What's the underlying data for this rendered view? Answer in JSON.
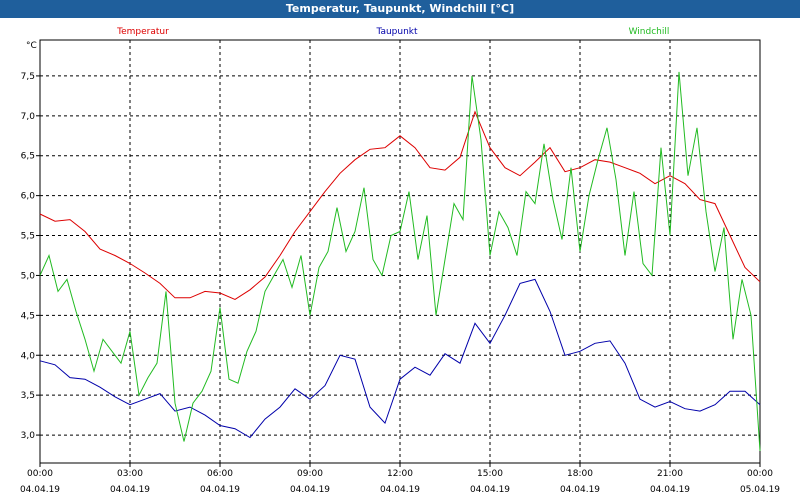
{
  "window": {
    "title": "Temperatur, Taupunkt, Windchill [°C]"
  },
  "chart_data": {
    "type": "line",
    "title": "Temperatur, Taupunkt, Windchill [°C]",
    "ylabel": "°C",
    "ylim": [
      2.65,
      7.95
    ],
    "xlim": [
      0,
      24
    ],
    "grid": true,
    "legend": "top",
    "yticks": [
      {
        "v": 3.0,
        "label": "3,0"
      },
      {
        "v": 3.5,
        "label": "3,5"
      },
      {
        "v": 4.0,
        "label": "4,0"
      },
      {
        "v": 4.5,
        "label": "4,5"
      },
      {
        "v": 5.0,
        "label": "5,0"
      },
      {
        "v": 5.5,
        "label": "5,5"
      },
      {
        "v": 6.0,
        "label": "6,0"
      },
      {
        "v": 6.5,
        "label": "6,5"
      },
      {
        "v": 7.0,
        "label": "7,0"
      },
      {
        "v": 7.5,
        "label": "7,5"
      }
    ],
    "xticks": [
      {
        "h": 0,
        "time": "00:00",
        "date": "04.04.19"
      },
      {
        "h": 3,
        "time": "03:00",
        "date": "04.04.19"
      },
      {
        "h": 6,
        "time": "06:00",
        "date": "04.04.19"
      },
      {
        "h": 9,
        "time": "09:00",
        "date": "04.04.19"
      },
      {
        "h": 12,
        "time": "12:00",
        "date": "04.04.19"
      },
      {
        "h": 15,
        "time": "15:00",
        "date": "04.04.19"
      },
      {
        "h": 18,
        "time": "18:00",
        "date": "04.04.19"
      },
      {
        "h": 21,
        "time": "21:00",
        "date": "04.04.19"
      },
      {
        "h": 24,
        "time": "00:00",
        "date": "05.04.19"
      }
    ],
    "series": [
      {
        "name": "Temperatur",
        "color": "#dd0000",
        "points": [
          [
            0,
            5.77
          ],
          [
            0.5,
            5.68
          ],
          [
            1,
            5.7
          ],
          [
            1.5,
            5.55
          ],
          [
            2,
            5.33
          ],
          [
            2.5,
            5.25
          ],
          [
            3,
            5.15
          ],
          [
            3.5,
            5.03
          ],
          [
            4,
            4.9
          ],
          [
            4.5,
            4.72
          ],
          [
            5,
            4.72
          ],
          [
            5.5,
            4.8
          ],
          [
            6,
            4.78
          ],
          [
            6.5,
            4.7
          ],
          [
            7,
            4.82
          ],
          [
            7.5,
            4.98
          ],
          [
            8,
            5.25
          ],
          [
            8.5,
            5.55
          ],
          [
            9,
            5.8
          ],
          [
            9.5,
            6.05
          ],
          [
            10,
            6.28
          ],
          [
            10.5,
            6.45
          ],
          [
            11,
            6.58
          ],
          [
            11.5,
            6.6
          ],
          [
            12,
            6.75
          ],
          [
            12.5,
            6.6
          ],
          [
            13,
            6.35
          ],
          [
            13.5,
            6.32
          ],
          [
            14,
            6.48
          ],
          [
            14.5,
            7.05
          ],
          [
            15,
            6.6
          ],
          [
            15.5,
            6.35
          ],
          [
            16,
            6.25
          ],
          [
            16.5,
            6.42
          ],
          [
            17,
            6.6
          ],
          [
            17.5,
            6.3
          ],
          [
            18,
            6.35
          ],
          [
            18.5,
            6.45
          ],
          [
            19,
            6.42
          ],
          [
            19.5,
            6.35
          ],
          [
            20,
            6.28
          ],
          [
            20.5,
            6.15
          ],
          [
            21,
            6.25
          ],
          [
            21.5,
            6.15
          ],
          [
            22,
            5.95
          ],
          [
            22.5,
            5.9
          ],
          [
            23,
            5.5
          ],
          [
            23.5,
            5.1
          ],
          [
            24,
            4.92
          ]
        ]
      },
      {
        "name": "Taupunkt",
        "color": "#0000aa",
        "points": [
          [
            0,
            3.93
          ],
          [
            0.5,
            3.88
          ],
          [
            1,
            3.72
          ],
          [
            1.5,
            3.7
          ],
          [
            2,
            3.6
          ],
          [
            2.5,
            3.48
          ],
          [
            3,
            3.38
          ],
          [
            3.5,
            3.45
          ],
          [
            4,
            3.52
          ],
          [
            4.5,
            3.3
          ],
          [
            5,
            3.35
          ],
          [
            5.5,
            3.25
          ],
          [
            6,
            3.12
          ],
          [
            6.5,
            3.08
          ],
          [
            7,
            2.97
          ],
          [
            7.5,
            3.2
          ],
          [
            8,
            3.35
          ],
          [
            8.5,
            3.58
          ],
          [
            9,
            3.45
          ],
          [
            9.5,
            3.62
          ],
          [
            10,
            4.0
          ],
          [
            10.5,
            3.95
          ],
          [
            11,
            3.35
          ],
          [
            11.5,
            3.15
          ],
          [
            12,
            3.7
          ],
          [
            12.5,
            3.85
          ],
          [
            13,
            3.75
          ],
          [
            13.5,
            4.02
          ],
          [
            14,
            3.9
          ],
          [
            14.5,
            4.4
          ],
          [
            15,
            4.15
          ],
          [
            15.5,
            4.5
          ],
          [
            16,
            4.9
          ],
          [
            16.5,
            4.95
          ],
          [
            17,
            4.55
          ],
          [
            17.5,
            4.0
          ],
          [
            18,
            4.05
          ],
          [
            18.5,
            4.15
          ],
          [
            19,
            4.18
          ],
          [
            19.5,
            3.9
          ],
          [
            20,
            3.45
          ],
          [
            20.5,
            3.35
          ],
          [
            21,
            3.42
          ],
          [
            21.5,
            3.33
          ],
          [
            22,
            3.3
          ],
          [
            22.5,
            3.38
          ],
          [
            23,
            3.55
          ],
          [
            23.5,
            3.55
          ],
          [
            24,
            3.38
          ]
        ]
      },
      {
        "name": "Windchill",
        "color": "#22bb22",
        "points": [
          [
            0,
            5.0
          ],
          [
            0.3,
            5.25
          ],
          [
            0.6,
            4.8
          ],
          [
            0.9,
            4.95
          ],
          [
            1.2,
            4.55
          ],
          [
            1.5,
            4.2
          ],
          [
            1.8,
            3.8
          ],
          [
            2.1,
            4.2
          ],
          [
            2.4,
            4.05
          ],
          [
            2.7,
            3.9
          ],
          [
            3,
            4.3
          ],
          [
            3.3,
            3.5
          ],
          [
            3.6,
            3.72
          ],
          [
            3.9,
            3.9
          ],
          [
            4.2,
            4.8
          ],
          [
            4.5,
            3.4
          ],
          [
            4.8,
            2.92
          ],
          [
            5.1,
            3.4
          ],
          [
            5.4,
            3.55
          ],
          [
            5.7,
            3.8
          ],
          [
            6,
            4.6
          ],
          [
            6.3,
            3.7
          ],
          [
            6.6,
            3.65
          ],
          [
            6.9,
            4.05
          ],
          [
            7.2,
            4.3
          ],
          [
            7.5,
            4.8
          ],
          [
            7.8,
            5.0
          ],
          [
            8.1,
            5.2
          ],
          [
            8.4,
            4.85
          ],
          [
            8.7,
            5.25
          ],
          [
            9,
            4.5
          ],
          [
            9.3,
            5.1
          ],
          [
            9.6,
            5.3
          ],
          [
            9.9,
            5.85
          ],
          [
            10.2,
            5.3
          ],
          [
            10.5,
            5.55
          ],
          [
            10.8,
            6.1
          ],
          [
            11.1,
            5.2
          ],
          [
            11.4,
            5.0
          ],
          [
            11.7,
            5.5
          ],
          [
            12,
            5.55
          ],
          [
            12.3,
            6.05
          ],
          [
            12.6,
            5.2
          ],
          [
            12.9,
            5.75
          ],
          [
            13.2,
            4.5
          ],
          [
            13.5,
            5.2
          ],
          [
            13.8,
            5.9
          ],
          [
            14.1,
            5.7
          ],
          [
            14.4,
            7.5
          ],
          [
            14.7,
            6.7
          ],
          [
            15,
            5.25
          ],
          [
            15.3,
            5.8
          ],
          [
            15.6,
            5.6
          ],
          [
            15.9,
            5.25
          ],
          [
            16.2,
            6.05
          ],
          [
            16.5,
            5.9
          ],
          [
            16.8,
            6.65
          ],
          [
            17.1,
            5.95
          ],
          [
            17.4,
            5.45
          ],
          [
            17.7,
            6.35
          ],
          [
            18,
            5.3
          ],
          [
            18.3,
            6.0
          ],
          [
            18.6,
            6.45
          ],
          [
            18.9,
            6.85
          ],
          [
            19.2,
            6.2
          ],
          [
            19.5,
            5.25
          ],
          [
            19.8,
            6.05
          ],
          [
            20.1,
            5.15
          ],
          [
            20.4,
            5.0
          ],
          [
            20.7,
            6.6
          ],
          [
            21,
            5.5
          ],
          [
            21.3,
            7.55
          ],
          [
            21.6,
            6.25
          ],
          [
            21.9,
            6.85
          ],
          [
            22.2,
            5.8
          ],
          [
            22.5,
            5.05
          ],
          [
            22.8,
            5.6
          ],
          [
            23.1,
            4.2
          ],
          [
            23.4,
            4.95
          ],
          [
            23.7,
            4.5
          ],
          [
            24,
            2.8
          ]
        ]
      }
    ]
  }
}
